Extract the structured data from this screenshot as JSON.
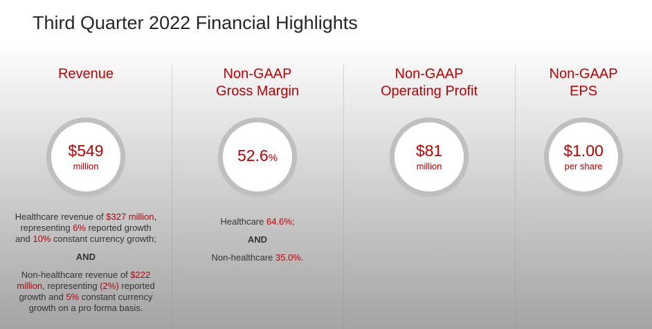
{
  "title": "Third Quarter 2022 Financial Highlights",
  "accent_color": "#c00000",
  "columns": [
    {
      "heading_lines": [
        "Revenue"
      ],
      "value": "$549",
      "unit": "million",
      "desc": {
        "p1": [
          "Healthcare revenue of ",
          "$327 million",
          ",",
          "representing ",
          "6%",
          " reported growth",
          "and ",
          "10%",
          " constant currency growth;"
        ],
        "and": "AND",
        "p2": [
          "Non-healthcare revenue of ",
          "$222",
          "million",
          ", representing ",
          "(2%)",
          " reported",
          "growth and ",
          "5%",
          " constant currency",
          "growth on a pro forma basis."
        ]
      }
    },
    {
      "heading_lines": [
        "Non-GAAP",
        "Gross Margin"
      ],
      "value": "52.6",
      "value_suffix": "%",
      "desc": {
        "p1": [
          "Healthcare ",
          "64.6%",
          ";"
        ],
        "and": "AND",
        "p2": [
          "Non-healthcare ",
          "35.0%",
          "."
        ]
      }
    },
    {
      "heading_lines": [
        "Non-GAAP",
        "Operating Profit"
      ],
      "value": "$81",
      "unit": "million"
    },
    {
      "heading_lines": [
        "Non-GAAP",
        "EPS"
      ],
      "value": "$1.00",
      "unit": "per share"
    }
  ]
}
